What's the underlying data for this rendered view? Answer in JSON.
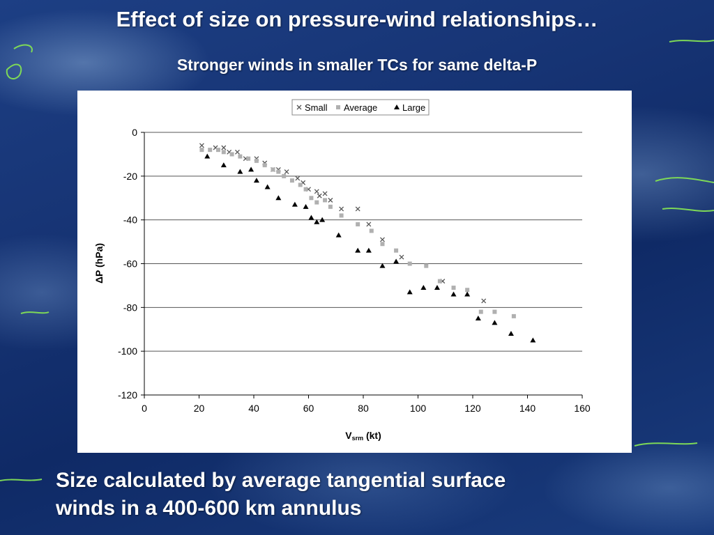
{
  "slide": {
    "title": "Effect of size on pressure-wind relationships…",
    "subtitle": "Stronger winds in smaller TCs for same delta-P",
    "footer_line1": "Size calculated by average tangential surface",
    "footer_line2": "winds in a 400-600 km annulus"
  },
  "colors": {
    "background": "#163373",
    "text": "#ffffff",
    "panel": "#ffffff",
    "small": "#555555",
    "average": "#b0b0b0",
    "large": "#000000"
  },
  "chart_data": {
    "type": "scatter",
    "title": "",
    "xlabel_main": "V",
    "xlabel_sub": "srm",
    "xlabel_tail": " (kt)",
    "ylabel_symbol": "Δ",
    "ylabel_text": "P (hPa)",
    "xlim": [
      0,
      160
    ],
    "ylim": [
      -120,
      0
    ],
    "xticks": [
      0,
      20,
      40,
      60,
      80,
      100,
      120,
      140,
      160
    ],
    "yticks": [
      0,
      -20,
      -40,
      -60,
      -80,
      -100,
      -120
    ],
    "grid": "horizontal",
    "legend_position": "top",
    "series": [
      {
        "name": "Small",
        "marker": "x",
        "points": [
          [
            21,
            -6
          ],
          [
            26,
            -7
          ],
          [
            29,
            -7
          ],
          [
            31,
            -9
          ],
          [
            34,
            -9
          ],
          [
            37,
            -12
          ],
          [
            41,
            -12
          ],
          [
            44,
            -14
          ],
          [
            47,
            -17
          ],
          [
            49,
            -17
          ],
          [
            52,
            -18
          ],
          [
            56,
            -21
          ],
          [
            58,
            -23
          ],
          [
            60,
            -26
          ],
          [
            63,
            -27
          ],
          [
            64,
            -29
          ],
          [
            66,
            -28
          ],
          [
            68,
            -31
          ],
          [
            72,
            -35
          ],
          [
            78,
            -35
          ],
          [
            82,
            -42
          ],
          [
            87,
            -49
          ],
          [
            94,
            -57
          ],
          [
            109,
            -68
          ],
          [
            124,
            -77
          ]
        ]
      },
      {
        "name": "Average",
        "marker": "square",
        "points": [
          [
            21,
            -8
          ],
          [
            24,
            -8
          ],
          [
            27,
            -8
          ],
          [
            29,
            -9
          ],
          [
            32,
            -10
          ],
          [
            35,
            -11
          ],
          [
            38,
            -12
          ],
          [
            41,
            -13
          ],
          [
            44,
            -15
          ],
          [
            47,
            -17
          ],
          [
            49,
            -18
          ],
          [
            51,
            -20
          ],
          [
            54,
            -22
          ],
          [
            57,
            -24
          ],
          [
            59,
            -26
          ],
          [
            61,
            -30
          ],
          [
            63,
            -32
          ],
          [
            66,
            -31
          ],
          [
            68,
            -34
          ],
          [
            72,
            -38
          ],
          [
            78,
            -42
          ],
          [
            83,
            -45
          ],
          [
            87,
            -51
          ],
          [
            92,
            -54
          ],
          [
            97,
            -60
          ],
          [
            103,
            -61
          ],
          [
            108,
            -68
          ],
          [
            113,
            -71
          ],
          [
            118,
            -72
          ],
          [
            123,
            -82
          ],
          [
            128,
            -82
          ],
          [
            135,
            -84
          ]
        ]
      },
      {
        "name": "Large",
        "marker": "triangle",
        "points": [
          [
            23,
            -11
          ],
          [
            29,
            -15
          ],
          [
            35,
            -18
          ],
          [
            39,
            -17
          ],
          [
            41,
            -22
          ],
          [
            45,
            -25
          ],
          [
            49,
            -30
          ],
          [
            55,
            -33
          ],
          [
            59,
            -34
          ],
          [
            61,
            -39
          ],
          [
            63,
            -41
          ],
          [
            65,
            -40
          ],
          [
            71,
            -47
          ],
          [
            78,
            -54
          ],
          [
            82,
            -54
          ],
          [
            87,
            -61
          ],
          [
            92,
            -59
          ],
          [
            97,
            -73
          ],
          [
            102,
            -71
          ],
          [
            107,
            -71
          ],
          [
            113,
            -74
          ],
          [
            118,
            -74
          ],
          [
            122,
            -85
          ],
          [
            128,
            -87
          ],
          [
            134,
            -92
          ],
          [
            142,
            -95
          ]
        ]
      }
    ]
  }
}
